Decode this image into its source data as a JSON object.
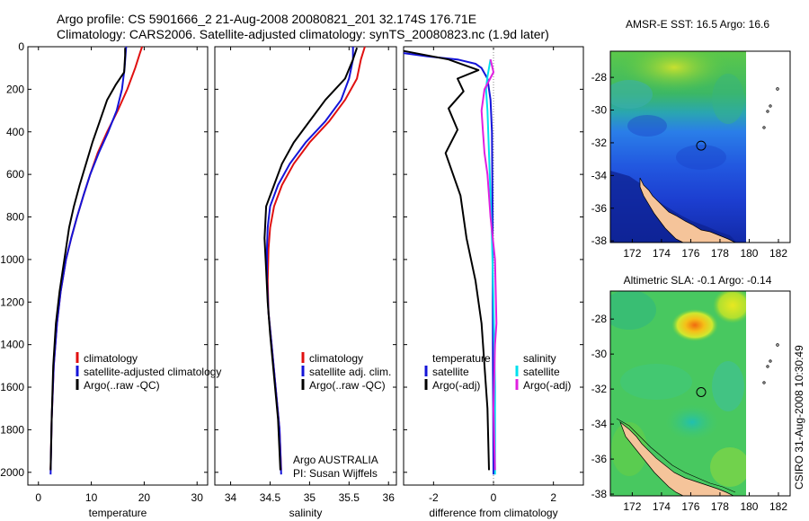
{
  "header": {
    "title_line1": "Argo profile: CS 5901666_2 21-Aug-2008 20080821_201 32.174S 176.71E",
    "title_line2": "Climatology: CARS2006. Satellite-adjusted climatology: synTS_20080823.nc (1.9d later)"
  },
  "colors": {
    "climatology": "#e01010",
    "satellite": "#1414d8",
    "argo": "#000000",
    "salinity_satellite": "#00e0ee",
    "salinity_argo_adj": "#e020e0",
    "land": "#f5c49a",
    "zero_line": "#888888"
  },
  "credit": {
    "rotated": "CSIRO 31-Aug-2008 10:30:49",
    "argo_country": "Argo AUSTRALIA",
    "pi": "PI: Susan Wijffels"
  },
  "chart_data": [
    {
      "type": "line",
      "id": "temperature",
      "xlabel": "temperature",
      "xlim": [
        -2,
        32
      ],
      "ylim": [
        0,
        2060
      ],
      "y_reversed": true,
      "xticks": [
        0,
        10,
        20,
        30
      ],
      "yticks": [
        0,
        200,
        400,
        600,
        800,
        1000,
        1200,
        1400,
        1600,
        1800,
        2000
      ],
      "legend": {
        "placement": "lower-right",
        "entries": [
          "climatology",
          "satellite-adjusted climatology",
          "Argo(..raw -QC)"
        ]
      },
      "series": [
        {
          "name": "climatology",
          "color": "climatology",
          "x": [
            19.6,
            19.2,
            18.3,
            16.8,
            15.0,
            13.0,
            11.2,
            9.8,
            8.5,
            7.3,
            6.2,
            5.2,
            4.2,
            3.5,
            2.9,
            2.5,
            2.3
          ],
          "y": [
            0,
            30,
            100,
            200,
            300,
            400,
            500,
            600,
            700,
            800,
            900,
            1000,
            1150,
            1300,
            1500,
            1750,
            1990
          ]
        },
        {
          "name": "satellite-adjusted climatology",
          "color": "satellite",
          "x": [
            16.6,
            16.5,
            16.3,
            15.8,
            14.8,
            13.2,
            11.4,
            9.8,
            8.5,
            7.3,
            6.2,
            5.2,
            4.2,
            3.5,
            2.9,
            2.5,
            2.3
          ],
          "y": [
            0,
            30,
            100,
            200,
            300,
            400,
            500,
            600,
            700,
            800,
            900,
            1000,
            1150,
            1300,
            1500,
            1750,
            2010
          ]
        },
        {
          "name": "Argo(..raw -QC)",
          "color": "argo",
          "x": [
            16.4,
            16.4,
            16.2,
            14.6,
            13.0,
            11.6,
            10.2,
            9.0,
            7.8,
            6.7,
            5.8,
            4.9,
            4.0,
            3.3,
            2.8,
            2.5,
            2.3
          ],
          "y": [
            5,
            40,
            120,
            180,
            250,
            350,
            450,
            550,
            650,
            750,
            850,
            1000,
            1150,
            1300,
            1500,
            1750,
            1990
          ]
        }
      ]
    },
    {
      "type": "line",
      "id": "salinity",
      "xlabel": "salinity",
      "xlim": [
        33.8,
        36.1
      ],
      "ylim": [
        0,
        2060
      ],
      "y_reversed": true,
      "xticks": [
        34,
        34.5,
        35,
        35.5,
        36
      ],
      "legend": {
        "placement": "lower-right",
        "entries": [
          "climatology",
          "satellite adj. clim.",
          "Argo(..raw -QC)"
        ]
      },
      "series": [
        {
          "name": "climatology",
          "color": "climatology",
          "x": [
            35.7,
            35.65,
            35.6,
            35.45,
            35.25,
            35.0,
            34.8,
            34.65,
            34.55,
            34.5,
            34.48,
            34.47,
            34.48,
            34.52,
            34.57,
            34.62,
            34.64
          ],
          "y": [
            0,
            60,
            150,
            250,
            350,
            450,
            550,
            650,
            750,
            850,
            950,
            1100,
            1250,
            1400,
            1600,
            1800,
            1990
          ]
        },
        {
          "name": "satellite adj. clim.",
          "color": "satellite",
          "x": [
            35.55,
            35.55,
            35.5,
            35.4,
            35.2,
            34.95,
            34.75,
            34.6,
            34.5,
            34.47,
            34.46,
            34.46,
            34.48,
            34.52,
            34.57,
            34.62,
            34.64
          ],
          "y": [
            0,
            60,
            150,
            250,
            350,
            450,
            550,
            650,
            750,
            850,
            950,
            1100,
            1250,
            1400,
            1600,
            1800,
            2010
          ]
        },
        {
          "name": "Argo(..raw -QC)",
          "color": "argo",
          "x": [
            35.6,
            35.55,
            35.45,
            35.2,
            35.0,
            34.8,
            34.65,
            34.55,
            34.45,
            34.43,
            34.45,
            34.47,
            34.5,
            34.55,
            34.6,
            34.63
          ],
          "y": [
            5,
            60,
            150,
            250,
            350,
            450,
            550,
            650,
            750,
            900,
            1050,
            1200,
            1350,
            1550,
            1750,
            1990
          ]
        }
      ]
    },
    {
      "type": "line",
      "id": "difference",
      "xlabel": "difference from climatology",
      "xlim": [
        -3,
        3
      ],
      "ylim": [
        0,
        2060
      ],
      "y_reversed": true,
      "xticks": [
        -2,
        0,
        2
      ],
      "zero_line": true,
      "legend": {
        "placement": "lower-right",
        "groups": [
          {
            "header": "temperature",
            "entries": [
              "satellite",
              "Argo(-adj)"
            ]
          },
          {
            "header": "salinity",
            "entries": [
              "satellite",
              "Argo(-adj)"
            ]
          }
        ]
      },
      "series": [
        {
          "name": "satellite",
          "group": "temperature",
          "color": "satellite",
          "x": [
            -3.0,
            -2.2,
            -1.2,
            -0.6,
            -0.4,
            -0.2,
            -0.1,
            -0.05,
            -0.03,
            -0.02,
            0.0
          ],
          "y": [
            30,
            45,
            60,
            80,
            100,
            150,
            250,
            400,
            800,
            1400,
            2010
          ]
        },
        {
          "name": "Argo(-adj)",
          "group": "temperature",
          "color": "argo",
          "x": [
            -3.0,
            -1.5,
            -0.5,
            -1.2,
            -1.0,
            -1.5,
            -1.2,
            -1.6,
            -1.1,
            -0.9,
            -0.6,
            -0.4,
            -0.2,
            -0.15
          ],
          "y": [
            20,
            60,
            110,
            150,
            210,
            290,
            390,
            500,
            700,
            900,
            1100,
            1300,
            1700,
            1990
          ]
        },
        {
          "name": "satellite",
          "group": "salinity",
          "color": "salinity_satellite",
          "x": [
            -0.1,
            -0.15,
            -0.2,
            -0.25,
            -0.2,
            -0.15,
            -0.1,
            -0.05,
            0.0,
            0.05,
            0.05
          ],
          "y": [
            60,
            100,
            140,
            200,
            300,
            500,
            700,
            900,
            1200,
            1600,
            2010
          ]
        },
        {
          "name": "Argo(-adj)",
          "group": "salinity",
          "color": "salinity_argo_adj",
          "x": [
            -0.1,
            0.0,
            -0.3,
            -0.4,
            -0.35,
            -0.3,
            -0.2,
            -0.1,
            0.05,
            0.1,
            0.05,
            0.0,
            0.05
          ],
          "y": [
            60,
            120,
            200,
            300,
            400,
            500,
            600,
            800,
            1000,
            1300,
            1400,
            1700,
            1990
          ]
        }
      ]
    },
    {
      "type": "heatmap",
      "id": "sst_map",
      "title": "AMSR-E SST: 16.5  Argo: 16.6",
      "xlim": [
        170.5,
        182.8
      ],
      "ylim": [
        -38.1,
        -26.4
      ],
      "xticks": [
        172,
        174,
        176,
        178,
        180,
        182
      ],
      "yticks": [
        -28,
        -30,
        -32,
        -34,
        -36,
        -38
      ],
      "data_extent_x": [
        170.5,
        180
      ],
      "profile_location": {
        "lon": 176.71,
        "lat": -32.174
      }
    },
    {
      "type": "heatmap",
      "id": "sla_map",
      "title": "Altimetric SLA: -0.1  Argo: -0.14",
      "xlim": [
        170.5,
        182.8
      ],
      "ylim": [
        -38.1,
        -26.4
      ],
      "xticks": [
        172,
        174,
        176,
        178,
        180,
        182
      ],
      "yticks": [
        -28,
        -30,
        -32,
        -34,
        -36,
        -38
      ],
      "data_extent_x": [
        170.5,
        180
      ],
      "profile_location": {
        "lon": 176.71,
        "lat": -32.174
      }
    }
  ]
}
